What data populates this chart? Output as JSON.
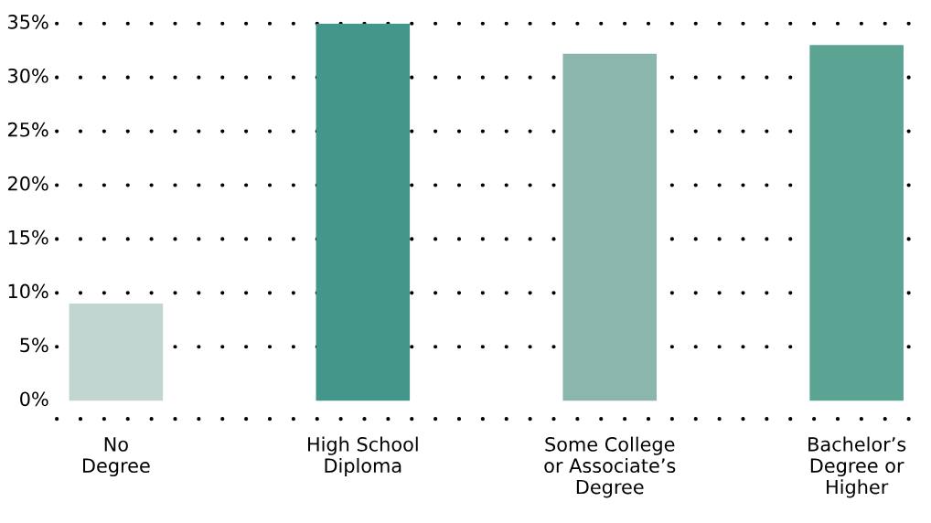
{
  "chart_data": {
    "type": "bar",
    "categories": [
      "No\nDegree",
      "High School\nDiploma",
      "Some College\nor Associate’s\nDegree",
      "Bachelor’s\nDegree or\nHigher"
    ],
    "values": [
      9,
      35,
      32.2,
      33
    ],
    "colors": [
      "#c2d6d1",
      "#42968a",
      "#8ab6ae",
      "#5ba392"
    ],
    "ylim": [
      -1.7,
      35
    ],
    "yticks": [
      {
        "value": 0,
        "label": "0%"
      },
      {
        "value": 5,
        "label": "5%"
      },
      {
        "value": 10,
        "label": "10%"
      },
      {
        "value": 15,
        "label": "15%"
      },
      {
        "value": 20,
        "label": "20%"
      },
      {
        "value": 25,
        "label": "25%"
      },
      {
        "value": 30,
        "label": "30%"
      },
      {
        "value": 35,
        "label": "35%"
      }
    ],
    "grid": "y"
  }
}
